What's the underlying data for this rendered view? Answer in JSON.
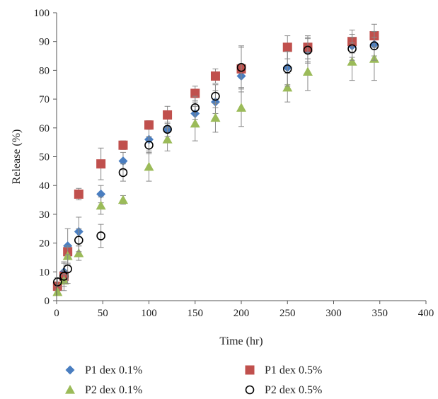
{
  "chart_data": {
    "type": "scatter",
    "xlabel": "Time (hr)",
    "ylabel": "Release (%)",
    "xlim": [
      0,
      400
    ],
    "ylim": [
      0,
      100
    ],
    "xticks": [
      "0",
      "50",
      "100",
      "150",
      "200",
      "250",
      "300",
      "350",
      "400"
    ],
    "yticks": [
      "0",
      "10",
      "20",
      "30",
      "40",
      "50",
      "60",
      "70",
      "80",
      "90",
      "100"
    ],
    "grid": false,
    "legend_position": "bottom",
    "series": [
      {
        "name": "P1 dex 0.1%",
        "marker": "diamond",
        "color": "#4a7ec0",
        "points": [
          {
            "x": 1,
            "y": 4,
            "err": 1.5
          },
          {
            "x": 8,
            "y": 10,
            "err": 3
          },
          {
            "x": 12,
            "y": 19,
            "err": 6
          },
          {
            "x": 24,
            "y": 24,
            "err": 5
          },
          {
            "x": 48,
            "y": 37,
            "err": 3
          },
          {
            "x": 72,
            "y": 48.5,
            "err": 3
          },
          {
            "x": 100,
            "y": 56,
            "err": 4
          },
          {
            "x": 120,
            "y": 59.5,
            "err": 4
          },
          {
            "x": 150,
            "y": 65,
            "err": 4
          },
          {
            "x": 172,
            "y": 69,
            "err": 4
          },
          {
            "x": 200,
            "y": 78,
            "err": 4
          },
          {
            "x": 250,
            "y": 81,
            "err": 6
          },
          {
            "x": 272,
            "y": 87,
            "err": 4
          },
          {
            "x": 320,
            "y": 88.5,
            "err": 4
          },
          {
            "x": 344,
            "y": 89,
            "err": 4
          }
        ]
      },
      {
        "name": "P1 dex 0.5%",
        "marker": "square",
        "color": "#c0504d",
        "points": [
          {
            "x": 1,
            "y": 5,
            "err": 1.5
          },
          {
            "x": 8,
            "y": 8.5,
            "err": 2
          },
          {
            "x": 12,
            "y": 17,
            "err": 2
          },
          {
            "x": 24,
            "y": 37,
            "err": 2
          },
          {
            "x": 48,
            "y": 47.5,
            "err": 5.5
          },
          {
            "x": 72,
            "y": 54,
            "err": 1.5
          },
          {
            "x": 100,
            "y": 61,
            "err": 1.5
          },
          {
            "x": 120,
            "y": 64.5,
            "err": 3
          },
          {
            "x": 150,
            "y": 72,
            "err": 2.5
          },
          {
            "x": 172,
            "y": 78,
            "err": 2.5
          },
          {
            "x": 200,
            "y": 80.5,
            "err": 8
          },
          {
            "x": 250,
            "y": 88,
            "err": 4
          },
          {
            "x": 272,
            "y": 88,
            "err": 4
          },
          {
            "x": 320,
            "y": 90,
            "err": 4
          },
          {
            "x": 344,
            "y": 92,
            "err": 4
          }
        ]
      },
      {
        "name": "P2 dex 0.1%",
        "marker": "triangle",
        "color": "#9bbb59",
        "points": [
          {
            "x": 1,
            "y": 3,
            "err": 1
          },
          {
            "x": 8,
            "y": 7,
            "err": 2
          },
          {
            "x": 12,
            "y": 15.5,
            "err": 3
          },
          {
            "x": 24,
            "y": 16.5,
            "err": 2.5
          },
          {
            "x": 48,
            "y": 33,
            "err": 3
          },
          {
            "x": 72,
            "y": 35,
            "err": 1.5
          },
          {
            "x": 100,
            "y": 46.5,
            "err": 5
          },
          {
            "x": 120,
            "y": 56,
            "err": 4
          },
          {
            "x": 150,
            "y": 61.5,
            "err": 6
          },
          {
            "x": 172,
            "y": 63.5,
            "err": 5
          },
          {
            "x": 200,
            "y": 67,
            "err": 6.5
          },
          {
            "x": 250,
            "y": 74,
            "err": 5
          },
          {
            "x": 272,
            "y": 79.5,
            "err": 6.5
          },
          {
            "x": 320,
            "y": 83,
            "err": 6.5
          },
          {
            "x": 344,
            "y": 84,
            "err": 7.5
          }
        ]
      },
      {
        "name": "P2 dex 0.5%",
        "marker": "circle",
        "color": "#000000",
        "points": [
          {
            "x": 1,
            "y": 6.5,
            "err": 1.5
          },
          {
            "x": 8,
            "y": 8.5,
            "err": 5
          },
          {
            "x": 12,
            "y": 11,
            "err": 5
          },
          {
            "x": 24,
            "y": 21,
            "err": 4
          },
          {
            "x": 48,
            "y": 22.5,
            "err": 4
          },
          {
            "x": 72,
            "y": 44.5,
            "err": 3
          },
          {
            "x": 100,
            "y": 54,
            "err": 3
          },
          {
            "x": 120,
            "y": 59.5,
            "err": 2.5
          },
          {
            "x": 150,
            "y": 67,
            "err": 4
          },
          {
            "x": 172,
            "y": 71,
            "err": 4
          },
          {
            "x": 200,
            "y": 81,
            "err": 7
          },
          {
            "x": 250,
            "y": 80.5,
            "err": 6
          },
          {
            "x": 272,
            "y": 87,
            "err": 4.5
          },
          {
            "x": 320,
            "y": 87.5,
            "err": 4
          },
          {
            "x": 344,
            "y": 88.5,
            "err": 5
          }
        ]
      }
    ]
  }
}
